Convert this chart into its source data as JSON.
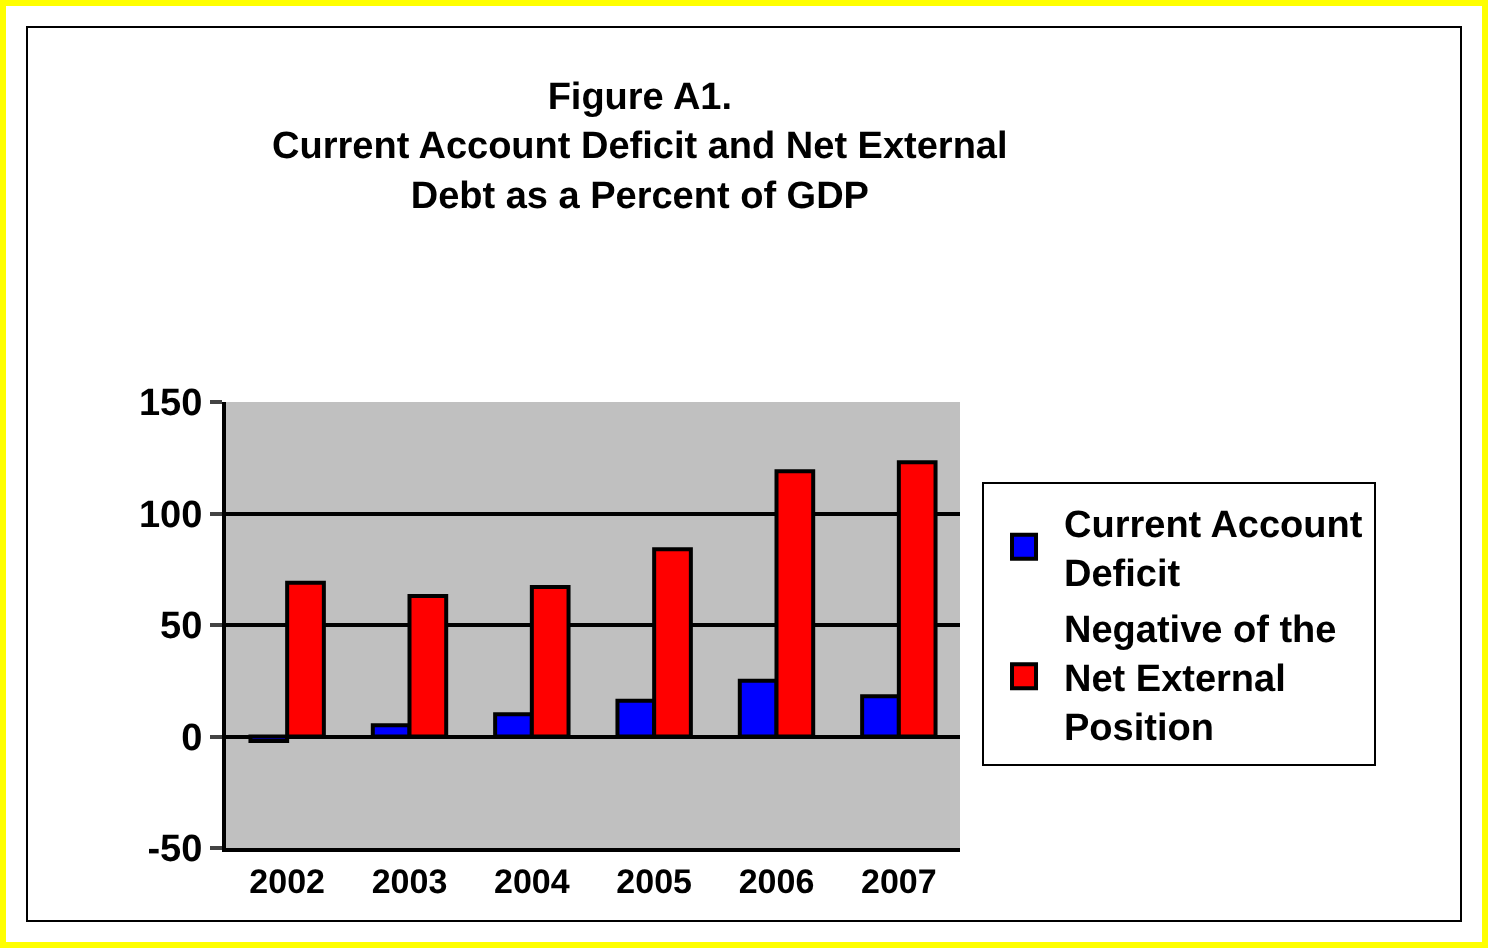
{
  "chart_data": {
    "type": "bar",
    "title": "Figure A1.\nCurrent Account Deficit and Net External\nDebt as a Percent of GDP",
    "categories": [
      "2002",
      "2003",
      "2004",
      "2005",
      "2006",
      "2007"
    ],
    "series": [
      {
        "name": "Current Account Deficit",
        "color": "#0000ff",
        "values": [
          -2,
          5,
          10,
          16,
          25,
          18
        ]
      },
      {
        "name": "Negative of the Net External Position",
        "color": "#ff0000",
        "values": [
          69,
          63,
          67,
          84,
          119,
          123
        ]
      }
    ],
    "ylim": [
      -50,
      150
    ],
    "yticks": [
      -50,
      0,
      50,
      100,
      150
    ],
    "grid": "y",
    "legend": "right"
  }
}
